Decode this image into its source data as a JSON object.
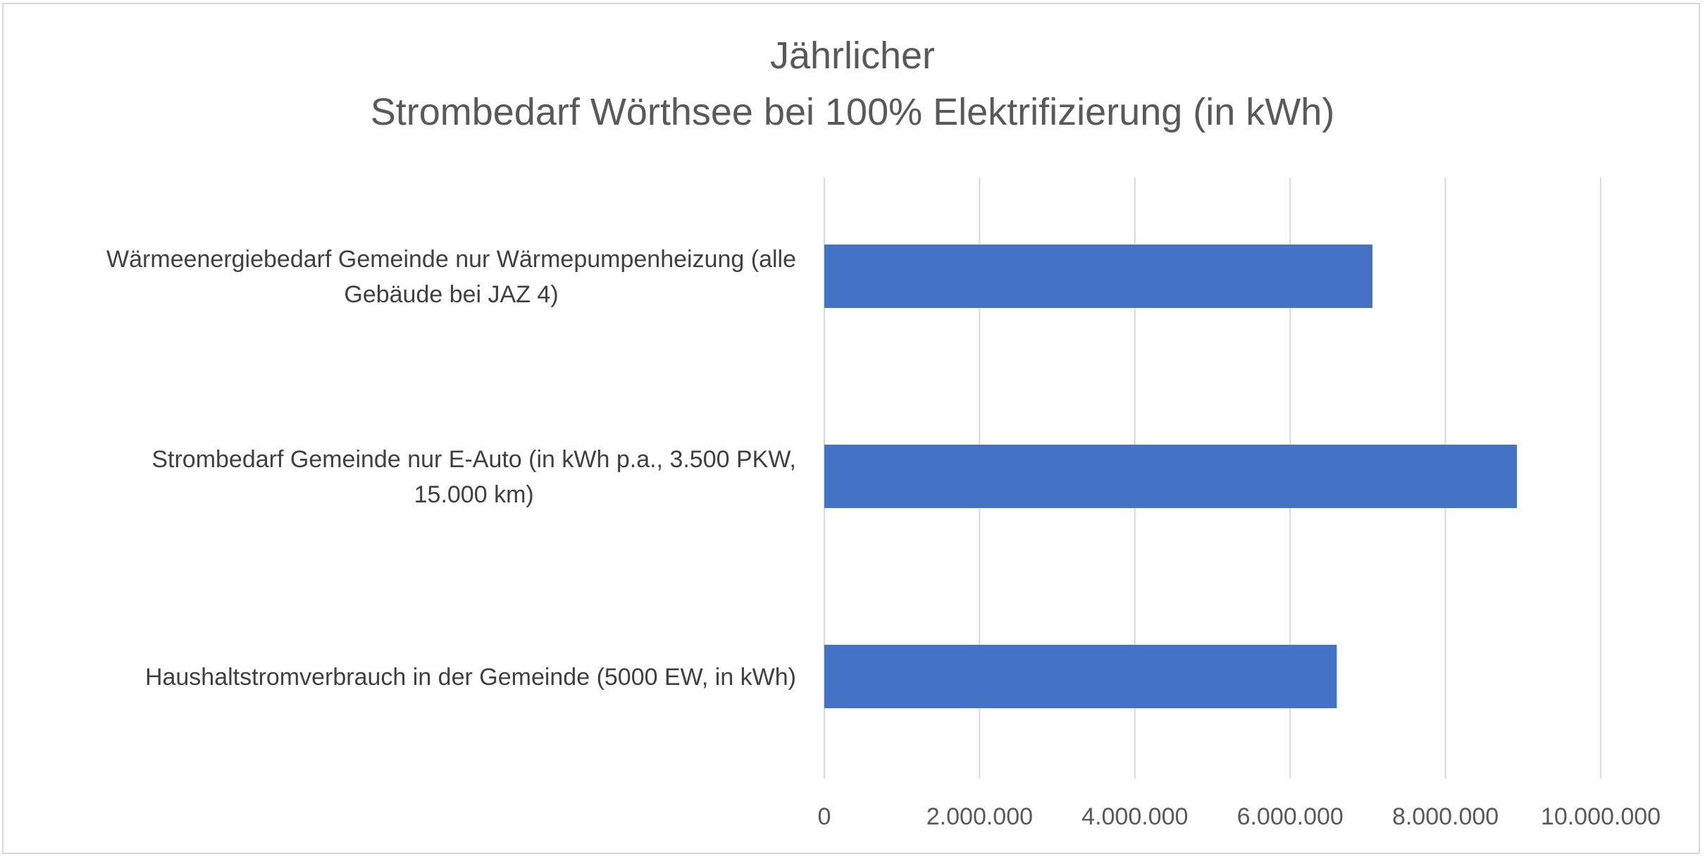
{
  "chart_data": {
    "type": "bar",
    "orientation": "horizontal",
    "title_lines": [
      "Jährlicher",
      "Strombedarf Wörthsee bei 100% Elektrifizierung (in kWh)"
    ],
    "categories": [
      [
        "Wärmeenergiebedarf Gemeinde nur Wärmepumpenheizung (alle",
        "Gebäude bei JAZ 4)"
      ],
      [
        "Strombedarf Gemeinde nur E-Auto (in kWh p.a., 3.500 PKW,",
        "15.000 km)"
      ],
      [
        "Haushaltstromverbrauch in der Gemeinde (5000 EW, in kWh)"
      ]
    ],
    "values": [
      7060000,
      8920000,
      6600000
    ],
    "xlim": [
      0,
      10000000
    ],
    "xticks": [
      0,
      2000000,
      4000000,
      6000000,
      8000000,
      10000000
    ],
    "xtick_labels": [
      "0",
      "2.000.000",
      "4.000.000",
      "6.000.000",
      "8.000.000",
      "10.000.000"
    ],
    "bar_color": "#4472C4",
    "grid": true,
    "legend": "none"
  }
}
